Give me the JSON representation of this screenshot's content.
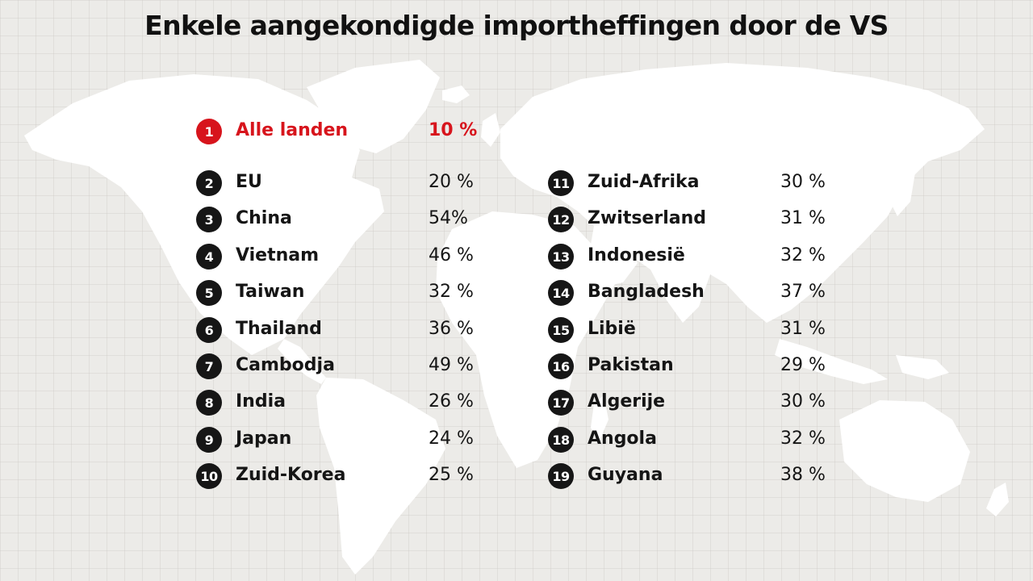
{
  "title": "Enkele  aangekondigde importheffingen door de VS",
  "colors": {
    "accent": "#d7141c",
    "badge": "#161616",
    "background": "#ecebe8",
    "map": "#ffffff"
  },
  "highlight": {
    "num": "1",
    "name": "Alle landen",
    "pct": "10 %"
  },
  "left_list": [
    {
      "num": "2",
      "name": "EU",
      "pct": "20 %"
    },
    {
      "num": "3",
      "name": "China",
      "pct": "54%"
    },
    {
      "num": "4",
      "name": "Vietnam",
      "pct": "46 %"
    },
    {
      "num": "5",
      "name": "Taiwan",
      "pct": "32 %"
    },
    {
      "num": "6",
      "name": "Thailand",
      "pct": "36 %"
    },
    {
      "num": "7",
      "name": "Cambodja",
      "pct": "49 %"
    },
    {
      "num": "8",
      "name": "India",
      "pct": "26 %"
    },
    {
      "num": "9",
      "name": "Japan",
      "pct": "24 %"
    },
    {
      "num": "10",
      "name": "Zuid-Korea",
      "pct": "25 %"
    }
  ],
  "right_list": [
    {
      "num": "11",
      "name": "Zuid-Afrika",
      "pct": "30 %"
    },
    {
      "num": "12",
      "name": "Zwitserland",
      "pct": "31 %"
    },
    {
      "num": "13",
      "name": "Indonesië",
      "pct": "32 %"
    },
    {
      "num": "14",
      "name": "Bangladesh",
      "pct": "37 %"
    },
    {
      "num": "15",
      "name": "Libië",
      "pct": "31 %"
    },
    {
      "num": "16",
      "name": "Pakistan",
      "pct": "29 %"
    },
    {
      "num": "17",
      "name": "Algerije",
      "pct": "30 %"
    },
    {
      "num": "18",
      "name": "Angola",
      "pct": "32 %"
    },
    {
      "num": "19",
      "name": "Guyana",
      "pct": "38 %"
    }
  ]
}
